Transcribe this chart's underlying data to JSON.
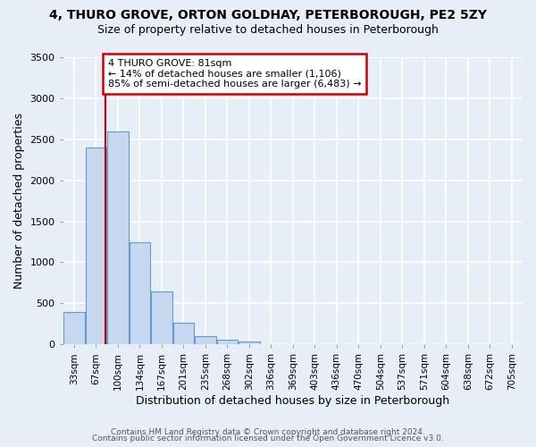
{
  "title1": "4, THURO GROVE, ORTON GOLDHAY, PETERBOROUGH, PE2 5ZY",
  "title2": "Size of property relative to detached houses in Peterborough",
  "xlabel": "Distribution of detached houses by size in Peterborough",
  "ylabel": "Number of detached properties",
  "categories": [
    "33sqm",
    "67sqm",
    "100sqm",
    "134sqm",
    "167sqm",
    "201sqm",
    "235sqm",
    "268sqm",
    "302sqm",
    "336sqm",
    "369sqm",
    "403sqm",
    "436sqm",
    "470sqm",
    "504sqm",
    "537sqm",
    "571sqm",
    "604sqm",
    "638sqm",
    "672sqm",
    "705sqm"
  ],
  "bar_values": [
    400,
    2400,
    2600,
    1250,
    650,
    260,
    100,
    55,
    35,
    0,
    0,
    0,
    0,
    0,
    0,
    0,
    0,
    0,
    0,
    0,
    0
  ],
  "bar_color": "#c5d8f0",
  "bar_edge_color": "#6699cc",
  "vline_x_idx": 1.45,
  "vline_color": "#cc0000",
  "annotation_title": "4 THURO GROVE: 81sqm",
  "annotation_line1": "← 14% of detached houses are smaller (1,106)",
  "annotation_line2": "85% of semi-detached houses are larger (6,483) →",
  "annotation_box_color": "#cc0000",
  "ylim": [
    0,
    3500
  ],
  "yticks": [
    0,
    500,
    1000,
    1500,
    2000,
    2500,
    3000,
    3500
  ],
  "footer1": "Contains HM Land Registry data © Crown copyright and database right 2024.",
  "footer2": "Contains public sector information licensed under the Open Government Licence v3.0.",
  "bg_color": "#e8eef8",
  "plot_bg_color": "#e8eef8",
  "grid_color": "#ffffff",
  "title_fontsize": 10,
  "subtitle_fontsize": 9
}
